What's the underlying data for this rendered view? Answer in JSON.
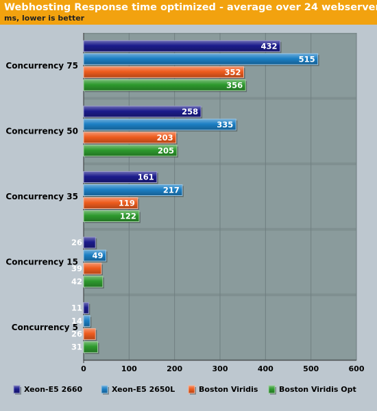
{
  "chart_data": {
    "type": "bar",
    "orientation": "horizontal",
    "title": "Webhosting Response time optimized - average over 24 webservers",
    "subtitle": "ms, lower is better",
    "categories": [
      "Concurrency 75",
      "Concurrency 50",
      "Concurrency 35",
      "Concurrency 15",
      "Concurrency 5"
    ],
    "series": [
      {
        "name": "Xeon-E5 2660",
        "values": [
          432,
          258,
          161,
          26,
          11
        ]
      },
      {
        "name": "Xeon-E5 2650L",
        "values": [
          515,
          335,
          217,
          49,
          14
        ]
      },
      {
        "name": "Boston Viridis",
        "values": [
          352,
          203,
          119,
          39,
          26
        ]
      },
      {
        "name": "Boston Viridis Opt",
        "values": [
          356,
          205,
          122,
          42,
          31
        ]
      }
    ],
    "xlim": [
      0,
      600
    ],
    "xticks": [
      0,
      100,
      200,
      300,
      400,
      500,
      600
    ],
    "legend_position": "bottom",
    "colors": [
      "#1c1c8c",
      "#1c7fc4",
      "#ee5c1e",
      "#2e9a2e"
    ]
  }
}
